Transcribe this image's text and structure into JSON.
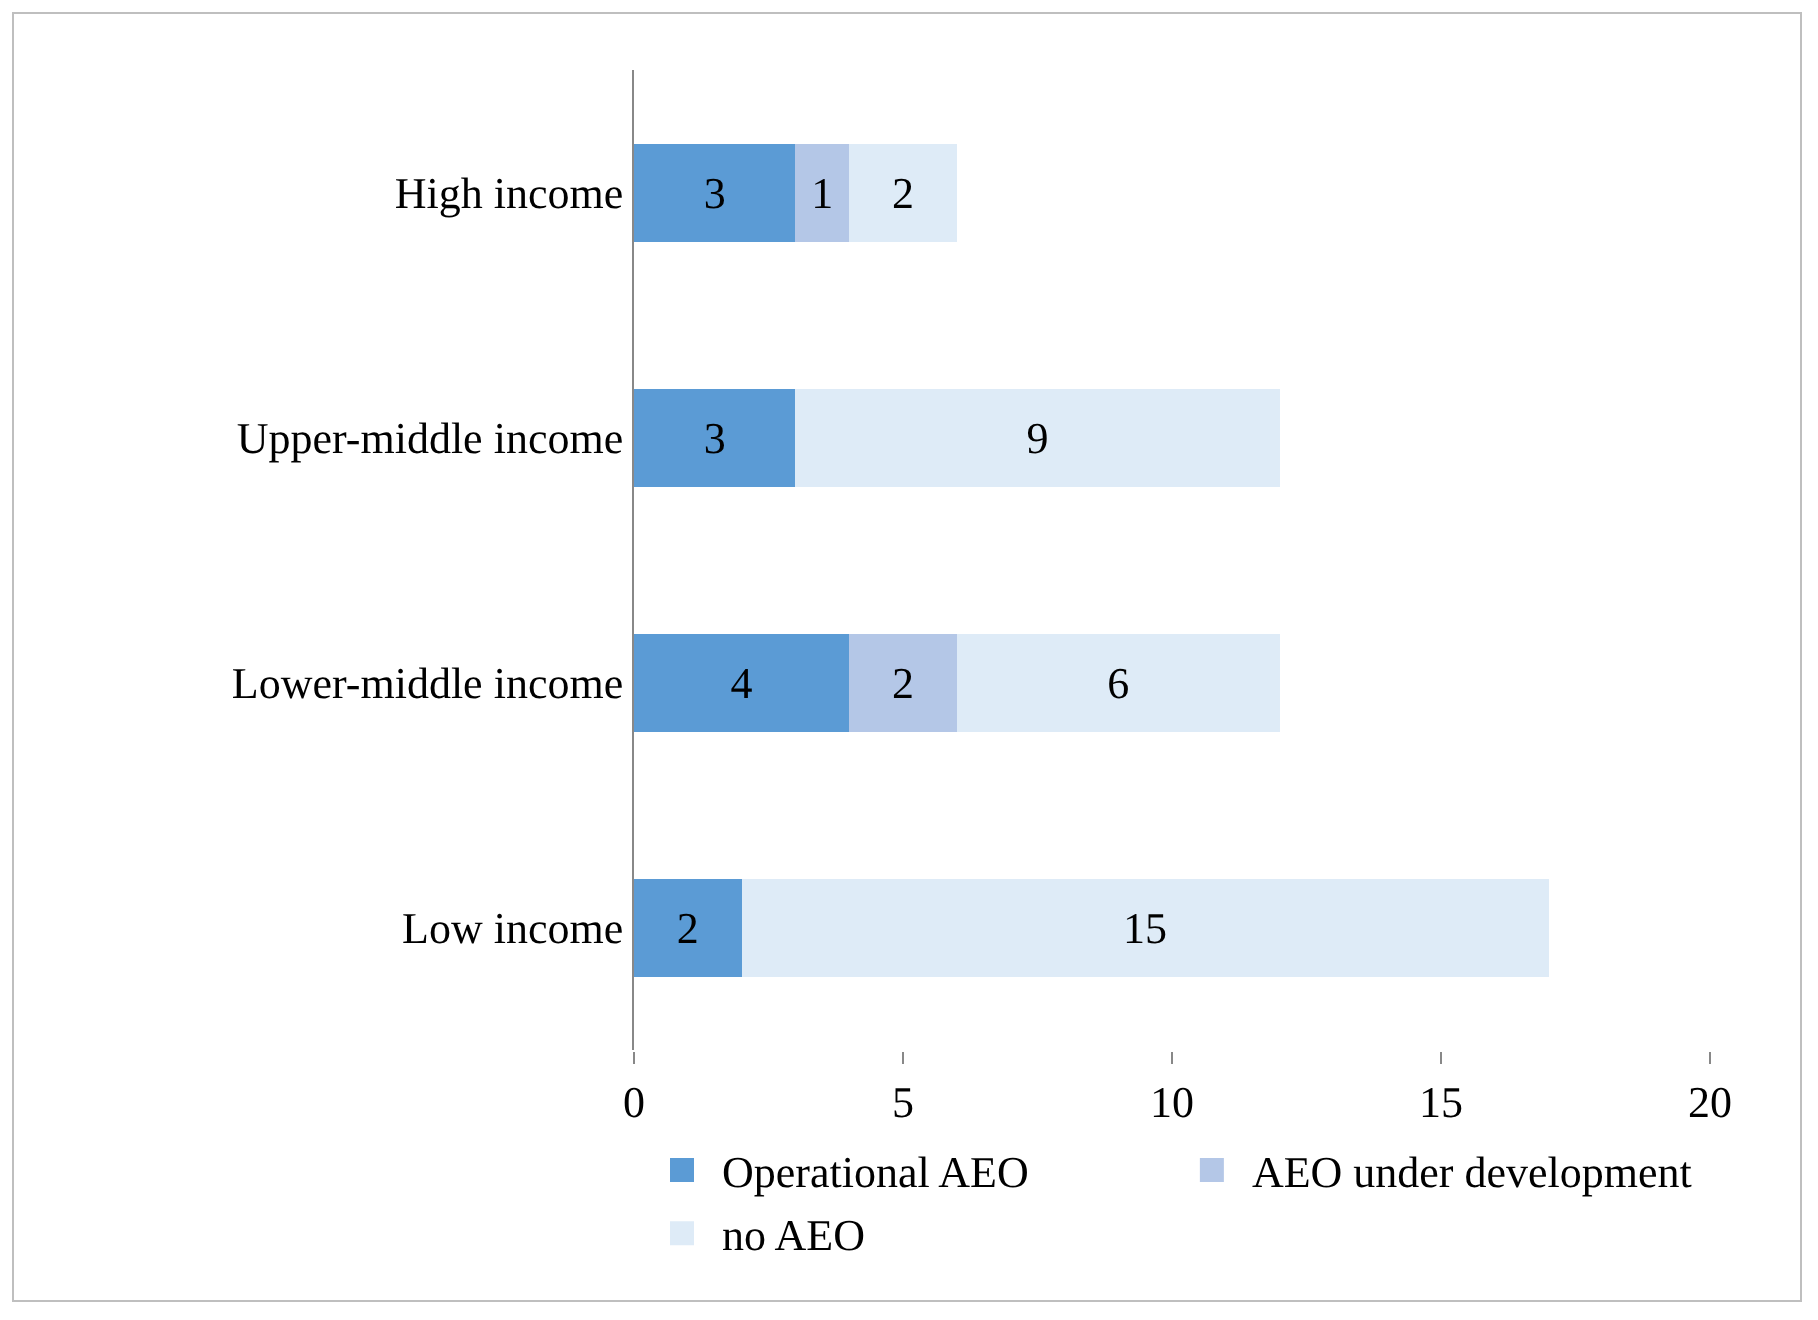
{
  "chart_data": {
    "type": "bar",
    "orientation": "horizontal",
    "stacked": true,
    "categories": [
      "High income",
      "Upper-middle income",
      "Lower-middle income",
      "Low income"
    ],
    "series": [
      {
        "name": "Operational AEO",
        "color": "#5b9bd5",
        "values": [
          3,
          3,
          4,
          2
        ],
        "value_labels": [
          "3",
          "3",
          "4",
          "2"
        ]
      },
      {
        "name": "AEO under development",
        "color": "#b4c7e7",
        "values": [
          1,
          0,
          2,
          0
        ],
        "value_labels": [
          "1",
          null,
          "2",
          null
        ]
      },
      {
        "name": "no AEO",
        "color": "#deebf7",
        "values": [
          2,
          9,
          6,
          15
        ],
        "value_labels": [
          "2",
          "9",
          "6",
          "15"
        ]
      }
    ],
    "xlim": [
      0,
      20
    ],
    "xticks": [
      0,
      5,
      10,
      15,
      20
    ],
    "grid": false,
    "legend": "bottom"
  }
}
